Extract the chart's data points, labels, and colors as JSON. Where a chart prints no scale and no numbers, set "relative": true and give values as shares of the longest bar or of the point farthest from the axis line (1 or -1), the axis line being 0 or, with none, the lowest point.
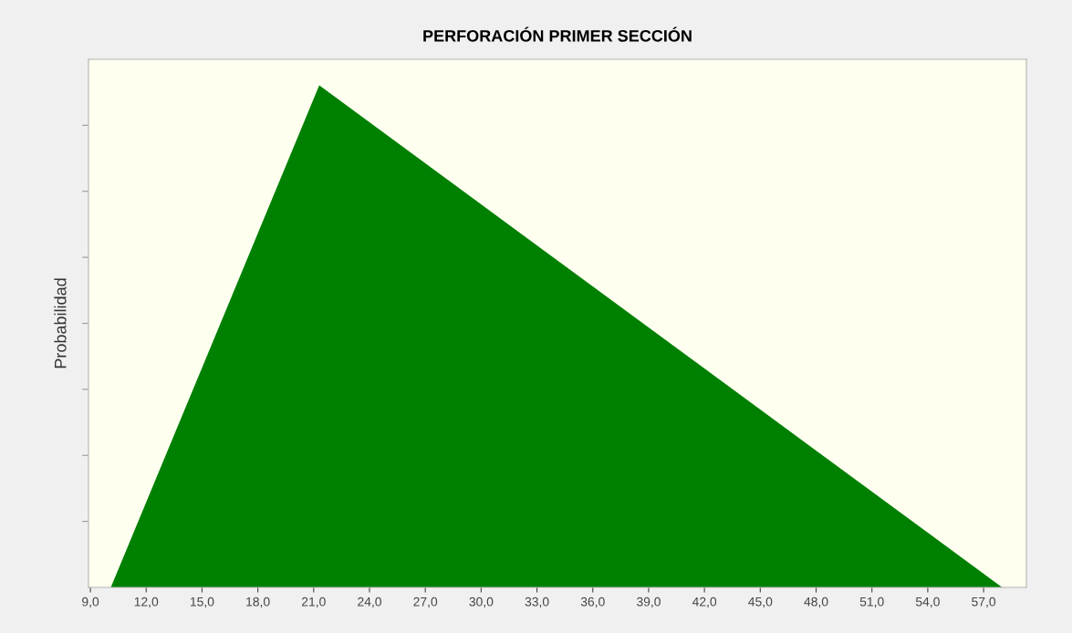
{
  "chart_data": {
    "type": "area",
    "title": "PERFORACIÓN PRIMER SECCIÓN",
    "ylabel": "Probabilidad",
    "relative": true,
    "x": [
      10.1,
      21.3,
      58.0
    ],
    "series": [
      {
        "color": "#008000",
        "values": [
          0,
          1,
          0
        ]
      }
    ],
    "xlim": [
      8.9,
      59.3
    ],
    "xticks": [
      {
        "value": 9,
        "label": "9,0"
      },
      {
        "value": 12,
        "label": "12,0"
      },
      {
        "value": 15,
        "label": "15,0"
      },
      {
        "value": 18,
        "label": "18,0"
      },
      {
        "value": 21,
        "label": "21,0"
      },
      {
        "value": 24,
        "label": "24,0"
      },
      {
        "value": 27,
        "label": "27,0"
      },
      {
        "value": 30,
        "label": "30,0"
      },
      {
        "value": 33,
        "label": "33,0"
      },
      {
        "value": 36,
        "label": "36,0"
      },
      {
        "value": 39,
        "label": "39,0"
      },
      {
        "value": 42,
        "label": "42,0"
      },
      {
        "value": 45,
        "label": "45,0"
      },
      {
        "value": 48,
        "label": "48,0"
      },
      {
        "value": 51,
        "label": "51,0"
      },
      {
        "value": 54,
        "label": "54,0"
      },
      {
        "value": 57,
        "label": "57,0"
      }
    ],
    "tick_labels": "x",
    "grid": false
  }
}
